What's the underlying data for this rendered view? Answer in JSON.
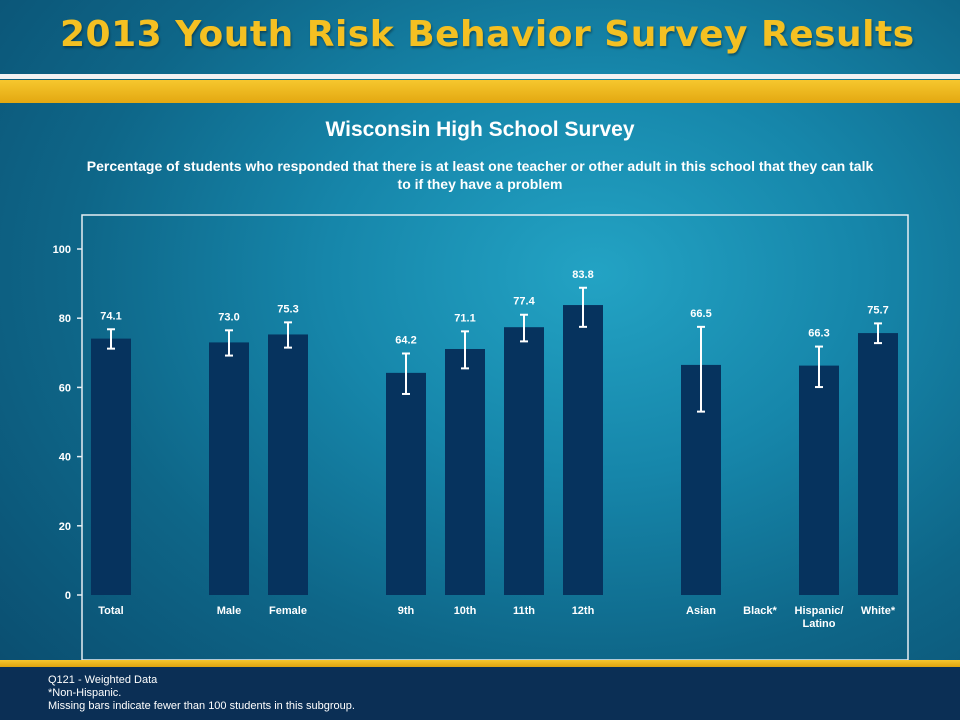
{
  "banner": {
    "title": "2013 Youth Risk Behavior Survey Results"
  },
  "colors": {
    "bar": "#06335e",
    "gold": "#f4c022",
    "text": "#ffffff",
    "frame": "#e6eef3"
  },
  "chart_data": {
    "type": "bar",
    "title": "Wisconsin High School Survey",
    "subtitle": "Percentage of students who responded that there is at least one teacher or other adult in this school that they can talk to if they have a problem",
    "ylim": [
      0,
      100
    ],
    "yticks": [
      0,
      20,
      40,
      60,
      80,
      100
    ],
    "categories": [
      "Total",
      "Male",
      "Female",
      "9th",
      "10th",
      "11th",
      "12th",
      "Asian",
      "Black*",
      "Hispanic/ Latino",
      "White*"
    ],
    "values": [
      74.1,
      73.0,
      75.3,
      64.2,
      71.1,
      77.4,
      83.8,
      66.5,
      null,
      66.3,
      75.7
    ],
    "value_labels": [
      "74.1",
      "73.0",
      "75.3",
      "64.2",
      "71.1",
      "77.4",
      "83.8",
      "66.5",
      "",
      "66.3",
      "75.7"
    ],
    "ci_low": [
      71.2,
      69.2,
      71.5,
      58.1,
      65.5,
      73.3,
      77.5,
      53.0,
      null,
      60.1,
      72.8
    ],
    "ci_high": [
      76.8,
      76.5,
      78.8,
      69.8,
      76.2,
      81.0,
      88.8,
      77.5,
      null,
      71.8,
      78.5
    ],
    "grid": false,
    "legend": "none"
  },
  "footer": {
    "line1": "Q121 - Weighted Data",
    "line2": "*Non-Hispanic.",
    "line3": "Missing bars indicate fewer than 100 students in this subgroup."
  }
}
